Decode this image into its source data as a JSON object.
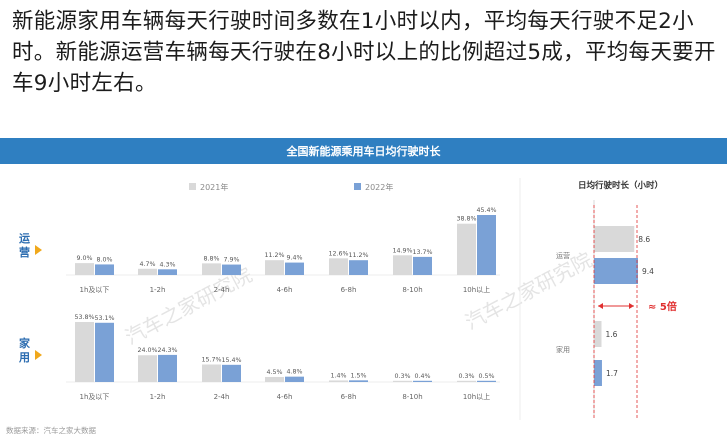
{
  "headline": "新能源家用车辆每天行驶时间多数在1小时以内，平均每天行驶不足2小时。新能源运营车辆每天行驶在8小时以上的比例超过5成，平均每天要开车9小时左右。",
  "banner_title": "全国新能源乘用车日均行驶时长",
  "footer": "数据来源：汽车之家大数据",
  "watermark": "汽车之家研究院",
  "colors": {
    "y2021": "#d9d9d9",
    "y2022": "#7aa1d6",
    "banner": "#2f7fc1",
    "arrow": "#f0a81c",
    "accent": "#e03030"
  },
  "chart_data": [
    {
      "type": "bar",
      "title": "全国新能源乘用车日均行驶时长",
      "categories": [
        "1h及以下",
        "1-2h",
        "2-4h",
        "4-6h",
        "6-8h",
        "8-10h",
        "10h以上"
      ],
      "legend": [
        "2021年",
        "2022年"
      ],
      "groups": [
        {
          "name": "运营",
          "series": [
            {
              "name": "2021年",
              "values": [
                9.0,
                4.7,
                8.8,
                11.2,
                12.6,
                14.9,
                38.8
              ],
              "labels": [
                "9.0%",
                "4.7%",
                "8.8%",
                "11.2%",
                "12.6%",
                "14.9%",
                "38.8%"
              ]
            },
            {
              "name": "2022年",
              "values": [
                8.0,
                4.3,
                7.9,
                9.4,
                11.2,
                13.7,
                45.4
              ],
              "labels": [
                "8.0%",
                "4.3%",
                "7.9%",
                "9.4%",
                "11.2%",
                "13.7%",
                "45.4%"
              ]
            }
          ]
        },
        {
          "name": "家用",
          "series": [
            {
              "name": "2021年",
              "values": [
                53.8,
                24.0,
                15.7,
                4.5,
                1.4,
                0.3,
                0.3
              ],
              "labels": [
                "53.8%",
                "24.0%",
                "15.7%",
                "4.5%",
                "1.4%",
                "0.3%",
                "0.3%"
              ]
            },
            {
              "name": "2022年",
              "values": [
                53.1,
                24.3,
                15.4,
                4.8,
                1.5,
                0.4,
                0.5
              ],
              "labels": [
                "53.1%",
                "24.3%",
                "15.4%",
                "4.8%",
                "1.5%",
                "0.4%",
                "0.5%"
              ]
            }
          ]
        }
      ],
      "legend_position": "top",
      "grid": false
    },
    {
      "type": "bar",
      "orientation": "horizontal",
      "title": "日均行驶时长（小时）",
      "categories": [
        "运营",
        "家用"
      ],
      "series": [
        {
          "name": "2021年",
          "values": [
            8.6,
            1.6
          ],
          "labels": [
            "8.6",
            "1.6"
          ]
        },
        {
          "name": "2022年",
          "values": [
            9.4,
            1.7
          ],
          "labels": [
            "9.4",
            "1.7"
          ]
        }
      ],
      "annotation": "≈ 5倍"
    }
  ]
}
